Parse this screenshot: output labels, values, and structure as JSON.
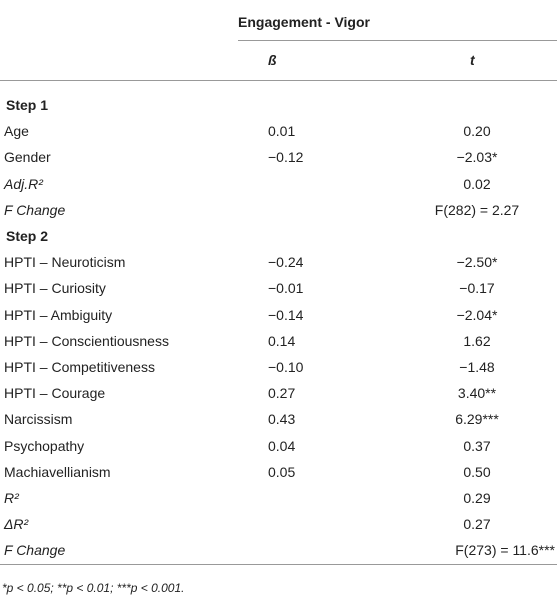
{
  "table": {
    "header": {
      "group": "Engagement - Vigor",
      "columns": [
        "ß",
        "t"
      ]
    },
    "rows": [
      [
        "Step 1"
      ],
      [
        "Age",
        "0.01",
        "0.20"
      ],
      [
        "Gender",
        "−0.12",
        "−2.03*"
      ],
      [
        "Adj.R²",
        "",
        "0.02"
      ],
      [
        "F Change",
        "",
        "F(282) = 2.27"
      ],
      [
        "Step 2"
      ],
      [
        "HPTI – Neuroticism",
        "−0.24",
        "−2.50*"
      ],
      [
        "HPTI – Curiosity",
        "−0.01",
        "−0.17"
      ],
      [
        "HPTI – Ambiguity",
        "−0.14",
        "−2.04*"
      ],
      [
        "HPTI – Conscientiousness",
        "0.14",
        "1.62"
      ],
      [
        "HPTI – Competitiveness",
        "−0.10",
        "−1.48"
      ],
      [
        "HPTI – Courage",
        "0.27",
        "3.40**"
      ],
      [
        "Narcissism",
        "0.43",
        "6.29***"
      ],
      [
        "Psychopathy",
        "0.04",
        "0.37"
      ],
      [
        "Machiavellianism",
        "0.05",
        "0.50"
      ],
      [
        "R²",
        "",
        "0.29"
      ],
      [
        "ΔR²",
        "",
        "0.27"
      ],
      [
        "F Change",
        "",
        "F(273) = 11.6***"
      ]
    ],
    "footnote": "*p < 0.05; **p < 0.01; ***p < 0.001."
  }
}
